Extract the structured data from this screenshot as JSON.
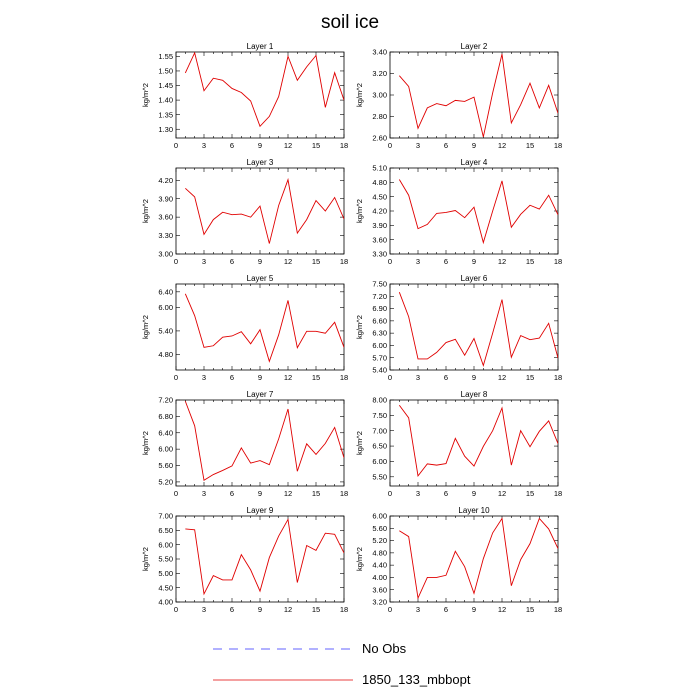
{
  "figure": {
    "title": "soil ice"
  },
  "legend": [
    {
      "name": "No Obs",
      "color": "#3030ff",
      "style": "dashed"
    },
    {
      "name": "1850_133_mbbopt",
      "color": "#e00000",
      "style": "solid"
    }
  ],
  "chart_data": [
    {
      "type": "line",
      "title": "Layer 1",
      "ylabel": "kg/m^2",
      "xlim": [
        0,
        18
      ],
      "ylim": [
        1.27,
        1.565
      ],
      "xticks": [
        0,
        3,
        6,
        9,
        12,
        15,
        18
      ],
      "yticks": [
        "1.30",
        "1.35",
        "1.40",
        "1.45",
        "1.50",
        "1.55"
      ],
      "x": [
        1,
        2,
        3,
        4,
        5,
        6,
        7,
        8,
        9,
        10,
        11,
        12,
        13,
        14,
        15,
        16,
        17,
        18
      ],
      "series": [
        {
          "name": "1850_133_mbbopt",
          "values": [
            1.493,
            1.562,
            1.432,
            1.475,
            1.468,
            1.44,
            1.426,
            1.397,
            1.31,
            1.344,
            1.412,
            1.55,
            1.468,
            1.514,
            1.553,
            1.375,
            1.494,
            1.4
          ]
        }
      ]
    },
    {
      "type": "line",
      "title": "Layer 2",
      "ylabel": "kg/m^2",
      "xlim": [
        0,
        18
      ],
      "ylim": [
        2.6,
        3.4
      ],
      "xticks": [
        0,
        3,
        6,
        9,
        12,
        15,
        18
      ],
      "yticks": [
        "2.60",
        "2.80",
        "3.00",
        "3.20",
        "3.40"
      ],
      "x": [
        1,
        2,
        3,
        4,
        5,
        6,
        7,
        8,
        9,
        10,
        11,
        12,
        13,
        14,
        15,
        16,
        17,
        18
      ],
      "series": [
        {
          "name": "1850_133_mbbopt",
          "values": [
            3.18,
            3.08,
            2.69,
            2.88,
            2.92,
            2.9,
            2.95,
            2.94,
            2.98,
            2.61,
            3.02,
            3.38,
            2.74,
            2.91,
            3.11,
            2.88,
            3.09,
            2.83
          ]
        }
      ]
    },
    {
      "type": "line",
      "title": "Layer 3",
      "ylabel": "kg/m^2",
      "xlim": [
        0,
        18
      ],
      "ylim": [
        3.0,
        4.4
      ],
      "xticks": [
        0,
        3,
        6,
        9,
        12,
        15,
        18
      ],
      "yticks": [
        "3.00",
        "3.30",
        "3.60",
        "3.90",
        "4.20"
      ],
      "x": [
        1,
        2,
        3,
        4,
        5,
        6,
        7,
        8,
        9,
        10,
        11,
        12,
        13,
        14,
        15,
        16,
        17,
        18
      ],
      "series": [
        {
          "name": "1850_133_mbbopt",
          "values": [
            4.07,
            3.93,
            3.32,
            3.56,
            3.68,
            3.64,
            3.65,
            3.6,
            3.78,
            3.17,
            3.79,
            4.21,
            3.34,
            3.56,
            3.87,
            3.7,
            3.92,
            3.57
          ]
        }
      ]
    },
    {
      "type": "line",
      "title": "Layer 4",
      "ylabel": "kg/m^2",
      "xlim": [
        0,
        18
      ],
      "ylim": [
        3.3,
        5.1
      ],
      "xticks": [
        0,
        3,
        6,
        9,
        12,
        15,
        18
      ],
      "yticks": [
        "3.30",
        "3.60",
        "3.90",
        "4.20",
        "4.50",
        "4.80",
        "5.10"
      ],
      "x": [
        1,
        2,
        3,
        4,
        5,
        6,
        7,
        8,
        9,
        10,
        11,
        12,
        13,
        14,
        15,
        16,
        17,
        18
      ],
      "series": [
        {
          "name": "1850_133_mbbopt",
          "values": [
            4.86,
            4.53,
            3.83,
            3.92,
            4.15,
            4.17,
            4.21,
            4.06,
            4.28,
            3.54,
            4.2,
            4.83,
            3.86,
            4.13,
            4.32,
            4.24,
            4.53,
            4.12
          ]
        }
      ]
    },
    {
      "type": "line",
      "title": "Layer 5",
      "ylabel": "kg/m^2",
      "xlim": [
        0,
        18
      ],
      "ylim": [
        4.4,
        6.6
      ],
      "xticks": [
        0,
        3,
        6,
        9,
        12,
        15,
        18
      ],
      "yticks": [
        "4.80",
        "5.40",
        "6.00",
        "6.40"
      ],
      "x": [
        1,
        2,
        3,
        4,
        5,
        6,
        7,
        8,
        9,
        10,
        11,
        12,
        13,
        14,
        15,
        16,
        17,
        18
      ],
      "series": [
        {
          "name": "1850_133_mbbopt",
          "values": [
            6.35,
            5.79,
            4.98,
            5.02,
            5.24,
            5.27,
            5.38,
            5.07,
            5.43,
            4.62,
            5.3,
            6.18,
            4.97,
            5.39,
            5.39,
            5.34,
            5.62,
            4.98
          ]
        }
      ]
    },
    {
      "type": "line",
      "title": "Layer 6",
      "ylabel": "kg/m^2",
      "xlim": [
        0,
        18
      ],
      "ylim": [
        5.4,
        7.5
      ],
      "xticks": [
        0,
        3,
        6,
        9,
        12,
        15,
        18
      ],
      "yticks": [
        "5.40",
        "5.70",
        "6.00",
        "6.30",
        "6.60",
        "6.90",
        "7.20",
        "7.50"
      ],
      "x": [
        1,
        2,
        3,
        4,
        5,
        6,
        7,
        8,
        9,
        10,
        11,
        12,
        13,
        14,
        15,
        16,
        17,
        18
      ],
      "series": [
        {
          "name": "1850_133_mbbopt",
          "values": [
            7.3,
            6.7,
            5.67,
            5.67,
            5.83,
            6.07,
            6.15,
            5.76,
            6.17,
            5.51,
            6.3,
            7.12,
            5.71,
            6.24,
            6.14,
            6.18,
            6.54,
            5.69
          ]
        }
      ]
    },
    {
      "type": "line",
      "title": "Layer 7",
      "ylabel": "kg/m^2",
      "xlim": [
        0,
        18
      ],
      "ylim": [
        5.1,
        7.2
      ],
      "xticks": [
        0,
        3,
        6,
        9,
        12,
        15,
        18
      ],
      "yticks": [
        "5.20",
        "5.60",
        "6.00",
        "6.40",
        "6.80",
        "7.20"
      ],
      "x": [
        1,
        2,
        3,
        4,
        5,
        6,
        7,
        8,
        9,
        10,
        11,
        12,
        13,
        14,
        15,
        16,
        17,
        18
      ],
      "series": [
        {
          "name": "1850_133_mbbopt",
          "values": [
            7.17,
            6.57,
            5.24,
            5.38,
            5.48,
            5.59,
            6.03,
            5.66,
            5.72,
            5.62,
            6.25,
            6.98,
            5.46,
            6.13,
            5.87,
            6.14,
            6.53,
            5.79
          ]
        }
      ]
    },
    {
      "type": "line",
      "title": "Layer 8",
      "ylabel": "kg/m^2",
      "xlim": [
        0,
        18
      ],
      "ylim": [
        5.2,
        8.0
      ],
      "xticks": [
        0,
        3,
        6,
        9,
        12,
        15,
        18
      ],
      "yticks": [
        "5.50",
        "6.00",
        "6.50",
        "7.00",
        "7.50",
        "8.00"
      ],
      "x": [
        1,
        2,
        3,
        4,
        5,
        6,
        7,
        8,
        9,
        10,
        11,
        12,
        13,
        14,
        15,
        16,
        17,
        18
      ],
      "series": [
        {
          "name": "1850_133_mbbopt",
          "values": [
            7.83,
            7.42,
            5.53,
            5.92,
            5.88,
            5.93,
            6.75,
            6.17,
            5.85,
            6.49,
            7.0,
            7.74,
            5.88,
            7.0,
            6.48,
            6.98,
            7.32,
            6.58
          ]
        }
      ]
    },
    {
      "type": "line",
      "title": "Layer 9",
      "ylabel": "kg/m^2",
      "xlim": [
        0,
        18
      ],
      "ylim": [
        4.0,
        7.0
      ],
      "xticks": [
        0,
        3,
        6,
        9,
        12,
        15,
        18
      ],
      "yticks": [
        "4.00",
        "4.50",
        "5.00",
        "5.50",
        "6.00",
        "6.50",
        "7.00"
      ],
      "x": [
        1,
        2,
        3,
        4,
        5,
        6,
        7,
        8,
        9,
        10,
        11,
        12,
        13,
        14,
        15,
        16,
        17,
        18
      ],
      "series": [
        {
          "name": "1850_133_mbbopt",
          "values": [
            6.55,
            6.52,
            4.28,
            4.92,
            4.77,
            4.77,
            5.65,
            5.12,
            4.38,
            5.55,
            6.3,
            6.88,
            4.68,
            5.97,
            5.8,
            6.4,
            6.36,
            5.71
          ]
        }
      ]
    },
    {
      "type": "line",
      "title": "Layer 10",
      "ylabel": "kg/m^2",
      "xlim": [
        0,
        18
      ],
      "ylim": [
        3.2,
        6.0
      ],
      "xticks": [
        0,
        3,
        6,
        9,
        12,
        15,
        18
      ],
      "yticks": [
        "3.20",
        "3.60",
        "4.00",
        "4.40",
        "4.80",
        "5.20",
        "5.60",
        "6.00"
      ],
      "x": [
        1,
        2,
        3,
        4,
        5,
        6,
        7,
        8,
        9,
        10,
        11,
        12,
        13,
        14,
        15,
        16,
        17,
        18
      ],
      "series": [
        {
          "name": "1850_133_mbbopt",
          "values": [
            5.52,
            5.33,
            3.33,
            4.0,
            4.0,
            4.07,
            4.85,
            4.35,
            3.48,
            4.61,
            5.45,
            5.92,
            3.73,
            4.58,
            5.1,
            5.92,
            5.58,
            4.94
          ]
        }
      ]
    }
  ]
}
